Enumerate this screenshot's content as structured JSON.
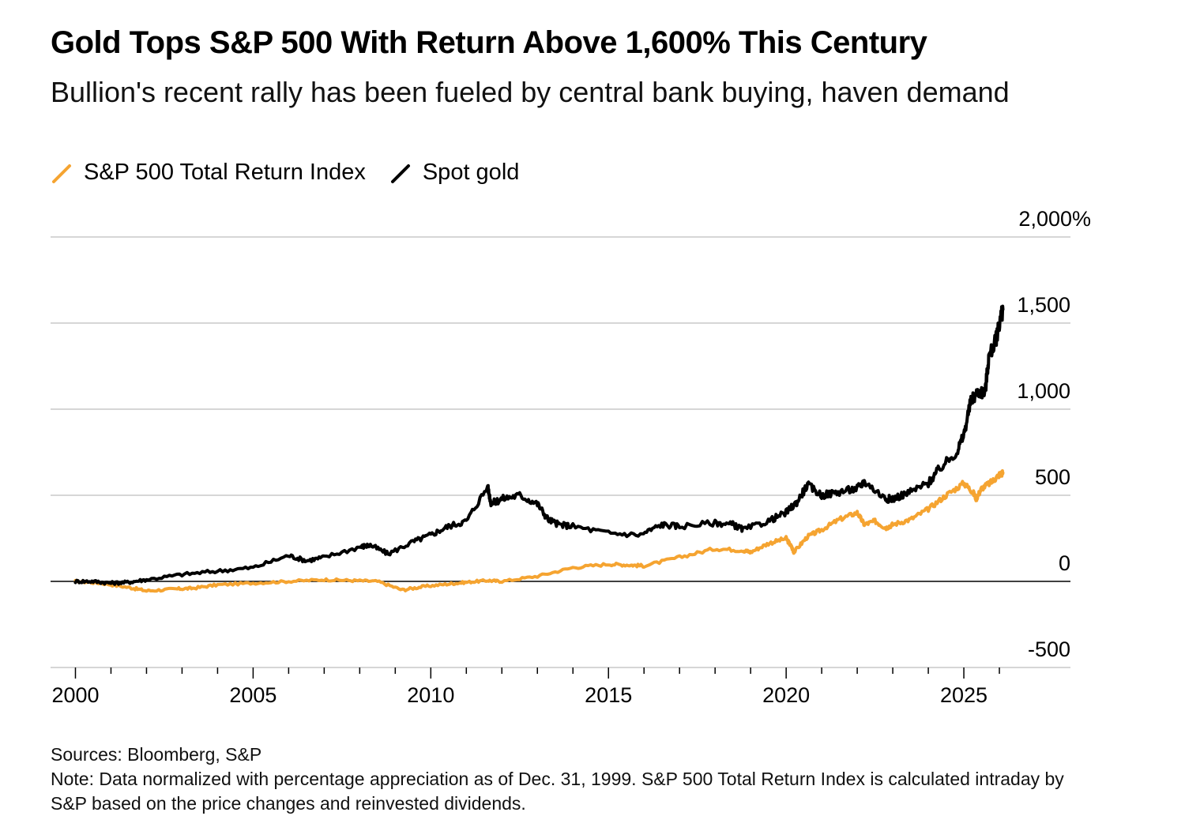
{
  "chart_data": {
    "type": "line",
    "title": "Gold Tops S&P 500 With Return Above 1,600% This Century",
    "subtitle": "Bullion's recent rally has been fueled by central bank buying, haven demand",
    "xlabel": "",
    "ylabel": "%",
    "xlim": [
      1999.3,
      2028.0
    ],
    "ylim": [
      -500,
      2000
    ],
    "y_ticks": [
      2000,
      1500,
      1000,
      500,
      0,
      -500
    ],
    "y_tick_labels": [
      "2,000%",
      "1,500",
      "1,000",
      "500",
      "0",
      "-500"
    ],
    "x_ticks": [
      2000,
      2005,
      2010,
      2015,
      2020,
      2025
    ],
    "x_tick_labels": [
      "2000",
      "2005",
      "2010",
      "2015",
      "2020",
      "2025"
    ],
    "grid": true,
    "legend_position": "top-left",
    "series": [
      {
        "name": "S&P 500 Total Return Index",
        "color": "#f5a431",
        "x": [
          2000.0,
          2000.7,
          2001.5,
          2002.0,
          2002.8,
          2003.3,
          2004.0,
          2005.0,
          2006.0,
          2007.0,
          2007.8,
          2008.5,
          2009.2,
          2009.8,
          2010.5,
          2011.0,
          2011.6,
          2012.0,
          2013.0,
          2014.0,
          2015.0,
          2015.6,
          2016.0,
          2017.0,
          2018.0,
          2018.8,
          2019.0,
          2019.5,
          2020.0,
          2020.15,
          2020.22,
          2020.6,
          2021.0,
          2021.5,
          2022.0,
          2022.2,
          2022.5,
          2022.8,
          2023.0,
          2023.5,
          2024.0,
          2024.5,
          2025.0,
          2025.25,
          2025.35,
          2025.5,
          2025.8,
          2026.0,
          2026.1
        ],
        "y": [
          0,
          -10,
          -35,
          -55,
          -45,
          -40,
          -20,
          -10,
          0,
          10,
          5,
          0,
          -50,
          -30,
          -15,
          -5,
          5,
          0,
          30,
          80,
          100,
          95,
          90,
          140,
          190,
          180,
          170,
          220,
          250,
          200,
          170,
          260,
          300,
          360,
          400,
          330,
          350,
          310,
          330,
          360,
          420,
          500,
          570,
          520,
          480,
          540,
          580,
          620,
          630
        ]
      },
      {
        "name": "Spot gold",
        "color": "#000000",
        "x": [
          2000.0,
          2000.5,
          2001.0,
          2001.5,
          2002.0,
          2003.0,
          2004.0,
          2005.0,
          2006.0,
          2006.5,
          2007.0,
          2008.0,
          2008.3,
          2008.8,
          2009.5,
          2010.0,
          2010.5,
          2011.0,
          2011.6,
          2011.7,
          2012.0,
          2012.5,
          2013.0,
          2013.3,
          2013.6,
          2014.0,
          2015.0,
          2015.9,
          2016.5,
          2017.0,
          2018.0,
          2018.5,
          2018.8,
          2019.5,
          2020.0,
          2020.3,
          2020.6,
          2021.0,
          2021.5,
          2022.0,
          2022.2,
          2022.8,
          2023.0,
          2023.5,
          2024.0,
          2024.3,
          2024.8,
          2025.0,
          2025.2,
          2025.4,
          2025.6,
          2025.7,
          2025.9,
          2026.0,
          2026.1
        ],
        "y": [
          0,
          0,
          -10,
          -5,
          10,
          40,
          60,
          80,
          150,
          120,
          140,
          200,
          210,
          160,
          230,
          270,
          320,
          350,
          550,
          450,
          480,
          500,
          450,
          360,
          330,
          320,
          280,
          270,
          330,
          320,
          340,
          330,
          300,
          350,
          400,
          460,
          560,
          500,
          520,
          540,
          580,
          480,
          480,
          520,
          570,
          650,
          750,
          850,
          1050,
          1100,
          1100,
          1300,
          1400,
          1500,
          1580
        ]
      }
    ]
  },
  "legend": {
    "sp500_label": "S&P 500 Total Return Index",
    "gold_label": "Spot gold"
  },
  "footer": {
    "sources": "Sources: Bloomberg, S&P",
    "note": "Note: Data normalized with percentage appreciation as of Dec. 31, 1999. S&P 500 Total Return Index is calculated intraday by S&P based on the price changes and reinvested dividends."
  }
}
